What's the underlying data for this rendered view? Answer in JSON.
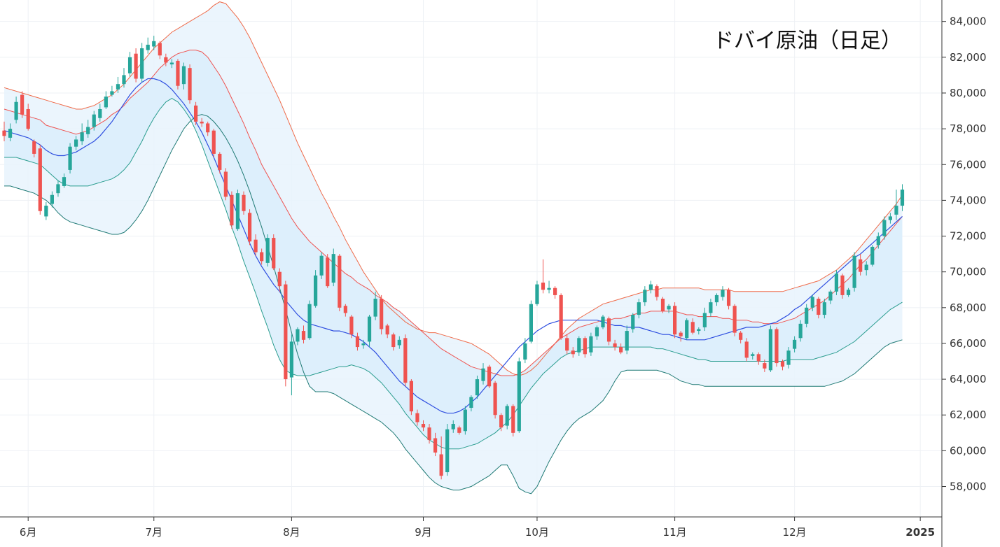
{
  "chart_data": {
    "type": "candlestick",
    "title": "ドバイ原油（日足）",
    "ylim": [
      56300,
      85200
    ],
    "y_ticks": [
      "84,000",
      "82,000",
      "80,000",
      "78,000",
      "76,000",
      "74,000",
      "72,000",
      "70,000",
      "68,000",
      "66,000",
      "64,000",
      "62,000",
      "60,000",
      "58,000"
    ],
    "y_tick_values": [
      84000,
      82000,
      80000,
      78000,
      76000,
      74000,
      72000,
      70000,
      68000,
      66000,
      64000,
      62000,
      60000,
      58000
    ],
    "x_ticks": [
      {
        "label": "6月",
        "day": 4,
        "bold": false
      },
      {
        "label": "7月",
        "day": 25,
        "bold": false
      },
      {
        "label": "8月",
        "day": 48,
        "bold": false
      },
      {
        "label": "9月",
        "day": 70,
        "bold": false
      },
      {
        "label": "10月",
        "day": 89,
        "bold": false
      },
      {
        "label": "11月",
        "day": 112,
        "bold": false
      },
      {
        "label": "12月",
        "day": 132,
        "bold": false
      },
      {
        "label": "2025",
        "day": 153,
        "bold": true
      }
    ],
    "series_colors": {
      "up": "#26a69a",
      "down": "#ef5350",
      "sma": "#2f4fe0",
      "band1": "#ef5350",
      "band2": "#ef6b4a",
      "lower1": "#2a9d8f",
      "lower2": "#1f7a75",
      "fill_outer": "#e8f3fd",
      "fill_inner": "#dbeefc"
    },
    "close": [
      77600,
      78000,
      79500,
      78800,
      78000,
      76600,
      73400,
      73700,
      74300,
      74900,
      75300,
      77000,
      77400,
      77800,
      78100,
      78800,
      79100,
      79800,
      80100,
      80500,
      81000,
      82000,
      80800,
      82500,
      82700,
      82900,
      82100,
      81700,
      81700,
      80400,
      81500,
      79600,
      78400,
      78300,
      77800,
      76600,
      75700,
      74200,
      72600,
      74400,
      73400,
      71700,
      71100,
      70600,
      71900,
      70200,
      69200,
      64000,
      66100,
      66800,
      66200,
      68200,
      69800,
      70900,
      69200,
      71000,
      68000,
      67700,
      66500,
      65800,
      66000,
      67500,
      68500,
      66800,
      66500,
      65800,
      66200,
      63800,
      62200,
      61600,
      61300,
      60600,
      59900,
      58600,
      61200,
      61500,
      61000,
      62300,
      63000,
      64000,
      64600,
      63600,
      62000,
      61300,
      62500,
      61000,
      65000,
      66000,
      68200,
      69300,
      69000,
      69100,
      68700,
      66300,
      65600,
      65400,
      66300,
      65400,
      66400,
      66900,
      67500,
      66100,
      65800,
      65500,
      66700,
      67600,
      68300,
      69000,
      69300,
      68600,
      67800,
      68100,
      66500,
      66400,
      67300,
      66600,
      66800,
      67700,
      68300,
      68700,
      69000,
      68100,
      66600,
      66200,
      65200,
      65400,
      65000,
      64600,
      66800,
      64900,
      64700,
      65600,
      66200,
      67100,
      68000,
      68600,
      67600,
      68300,
      68900,
      69900,
      68700,
      69000,
      70900,
      70000,
      70400,
      71400,
      72000,
      72900,
      73100,
      73700,
      74600
    ],
    "open": [
      77900,
      77500,
      78500,
      79900,
      79100,
      77300,
      76900,
      73100,
      73800,
      74400,
      74800,
      75700,
      77000,
      77300,
      77700,
      78100,
      78600,
      79200,
      79900,
      80200,
      80500,
      81100,
      82200,
      80800,
      82400,
      82600,
      82800,
      82000,
      81600,
      81800,
      80500,
      81400,
      79300,
      78400,
      78300,
      77900,
      76600,
      75600,
      74300,
      72400,
      74300,
      73300,
      71800,
      71100,
      70500,
      71900,
      70000,
      69300,
      64100,
      66100,
      66700,
      66300,
      68100,
      69800,
      70800,
      69400,
      70900,
      68100,
      67500,
      66400,
      65900,
      66100,
      67500,
      68500,
      67000,
      66500,
      65900,
      66300,
      63900,
      62100,
      61500,
      61300,
      60700,
      59800,
      58800,
      61200,
      61300,
      61100,
      62400,
      63100,
      63900,
      64700,
      63800,
      62000,
      61400,
      62500,
      61100,
      65100,
      66100,
      68200,
      69400,
      69000,
      69100,
      68700,
      66300,
      65600,
      65500,
      66300,
      65500,
      66400,
      66900,
      67400,
      66000,
      65800,
      65600,
      66800,
      67600,
      68300,
      69000,
      69200,
      68500,
      67900,
      68100,
      66600,
      66300,
      67200,
      66700,
      66900,
      67700,
      68300,
      68600,
      69000,
      68100,
      66600,
      66100,
      65300,
      65400,
      64900,
      64500,
      66800,
      65000,
      64800,
      65700,
      66300,
      67100,
      68000,
      68500,
      67600,
      68400,
      68900,
      69800,
      68700,
      69100,
      70700,
      70100,
      70400,
      71500,
      72000,
      72900,
      73200,
      73700
    ],
    "high": [
      78400,
      78300,
      79800,
      80100,
      79400,
      77400,
      77100,
      73900,
      74500,
      75100,
      75500,
      77200,
      77600,
      78300,
      78500,
      79000,
      79400,
      80100,
      80400,
      80900,
      81400,
      82300,
      82500,
      82800,
      83100,
      83200,
      82900,
      82200,
      81900,
      81900,
      81700,
      81600,
      79500,
      78600,
      78400,
      78000,
      76700,
      75800,
      74500,
      74600,
      74500,
      73500,
      72100,
      71300,
      72100,
      72100,
      70200,
      69500,
      66500,
      66900,
      67000,
      68400,
      70100,
      71100,
      71000,
      71300,
      71000,
      68200,
      67600,
      66600,
      66200,
      67600,
      68900,
      68700,
      67100,
      66600,
      66400,
      66500,
      64000,
      62300,
      61700,
      61500,
      61000,
      60800,
      61500,
      61700,
      61400,
      62500,
      63100,
      64200,
      64900,
      64800,
      63900,
      62100,
      62600,
      62600,
      65200,
      66300,
      68400,
      69500,
      70700,
      69500,
      69200,
      68800,
      66500,
      65800,
      66400,
      66400,
      66600,
      67000,
      67600,
      67500,
      66200,
      66000,
      67000,
      67700,
      68500,
      69200,
      69500,
      69300,
      68600,
      68200,
      68300,
      66700,
      67400,
      67400,
      66900,
      68000,
      68500,
      68800,
      69200,
      69100,
      68200,
      66700,
      66300,
      65500,
      65500,
      65100,
      67000,
      66900,
      65100,
      65800,
      66400,
      67300,
      68200,
      68700,
      68600,
      68500,
      69000,
      70100,
      69900,
      69100,
      71100,
      71000,
      70600,
      71500,
      72200,
      73100,
      73300,
      74600,
      74900
    ],
    "low": [
      77300,
      77300,
      78300,
      78600,
      77900,
      76400,
      73200,
      72900,
      73600,
      74200,
      74700,
      75500,
      76800,
      77100,
      77500,
      77900,
      78400,
      79100,
      79800,
      80000,
      80300,
      80900,
      80600,
      80600,
      82200,
      82400,
      81900,
      81500,
      81400,
      80200,
      80200,
      79400,
      78200,
      78100,
      77600,
      76400,
      75500,
      74000,
      72400,
      72300,
      73200,
      71500,
      70900,
      70400,
      70300,
      70100,
      68900,
      63600,
      63100,
      65900,
      66000,
      66200,
      68000,
      69600,
      69100,
      69200,
      67800,
      67500,
      66300,
      65600,
      65700,
      65800,
      67300,
      66500,
      66300,
      65600,
      65700,
      63600,
      62000,
      61400,
      61100,
      60400,
      59700,
      58400,
      58600,
      61000,
      60900,
      60900,
      62200,
      62900,
      63700,
      63500,
      61800,
      61100,
      61200,
      60800,
      61000,
      64900,
      66000,
      68100,
      68800,
      68800,
      68500,
      66200,
      65400,
      65200,
      65300,
      65200,
      65300,
      66200,
      66800,
      65900,
      65600,
      65400,
      65400,
      66600,
      67400,
      68100,
      68800,
      68400,
      67700,
      67700,
      66300,
      66100,
      66200,
      66500,
      66500,
      66700,
      67500,
      68100,
      68400,
      67900,
      66400,
      66000,
      65000,
      65100,
      64800,
      64400,
      64400,
      64700,
      64500,
      64600,
      65500,
      66100,
      66900,
      67800,
      67400,
      67400,
      68200,
      68700,
      68500,
      68600,
      68900,
      69800,
      69800,
      70300,
      71300,
      71800,
      72700,
      72900,
      73400
    ],
    "sma": [
      77900,
      77800,
      77700,
      77600,
      77500,
      77300,
      77100,
      76800,
      76600,
      76500,
      76500,
      76600,
      76700,
      76900,
      77100,
      77300,
      77600,
      78000,
      78400,
      78900,
      79400,
      79900,
      80300,
      80600,
      80800,
      80800,
      80700,
      80500,
      80200,
      79800,
      79400,
      78900,
      78400,
      77800,
      77100,
      76400,
      75600,
      74800,
      74000,
      73200,
      72400,
      71600,
      70900,
      70300,
      69800,
      69300,
      68900,
      68400,
      68000,
      67600,
      67300,
      67100,
      67000,
      66900,
      66800,
      66700,
      66700,
      66600,
      66500,
      66300,
      66100,
      65800,
      65500,
      65100,
      64700,
      64300,
      63900,
      63600,
      63300,
      63000,
      62800,
      62600,
      62400,
      62200,
      62100,
      62100,
      62200,
      62400,
      62700,
      63000,
      63400,
      63800,
      64200,
      64600,
      65000,
      65400,
      65800,
      66100,
      66400,
      66700,
      66900,
      67100,
      67200,
      67300,
      67300,
      67300,
      67300,
      67300,
      67300,
      67300,
      67200,
      67100,
      67000,
      67000,
      66900,
      66900,
      66900,
      66800,
      66700,
      66600,
      66500,
      66500,
      66400,
      66300,
      66200,
      66200,
      66200,
      66200,
      66300,
      66400,
      66500,
      66600,
      66700,
      66800,
      66900,
      66900,
      66900,
      67000,
      67100,
      67200,
      67400,
      67600,
      67900,
      68100,
      68400,
      68700,
      69000,
      69300,
      69600,
      69900,
      70200,
      70500,
      70800,
      71000,
      71300,
      71600,
      71900,
      72200,
      72500,
      72800,
      73100
    ],
    "upper_band_1": [
      79100,
      79000,
      78900,
      78800,
      78700,
      78600,
      78500,
      78200,
      78100,
      78000,
      77900,
      77800,
      77700,
      77800,
      77900,
      78100,
      78300,
      78500,
      78800,
      79000,
      79300,
      79700,
      80000,
      80300,
      80600,
      81000,
      81400,
      81700,
      82000,
      82200,
      82300,
      82400,
      82400,
      82300,
      82000,
      81500,
      81000,
      80400,
      79700,
      79000,
      78300,
      77500,
      76800,
      76000,
      75400,
      74800,
      74200,
      73600,
      73000,
      72500,
      72100,
      71700,
      71400,
      71100,
      70800,
      70500,
      70200,
      69900,
      69700,
      69400,
      69200,
      69000,
      68700,
      68500,
      68300,
      68000,
      67800,
      67500,
      67200,
      66900,
      66600,
      66300,
      66000,
      65700,
      65500,
      65300,
      65100,
      64900,
      64700,
      64600,
      64500,
      64400,
      64300,
      64200,
      64200,
      64200,
      64300,
      64500,
      64800,
      65100,
      65400,
      65700,
      66000,
      66300,
      66500,
      66700,
      66900,
      67000,
      67100,
      67200,
      67300,
      67300,
      67400,
      67400,
      67500,
      67600,
      67700,
      67700,
      67800,
      67800,
      67800,
      67800,
      67800,
      67700,
      67600,
      67600,
      67500,
      67500,
      67500,
      67500,
      67400,
      67400,
      67300,
      67300,
      67300,
      67200,
      67200,
      67100,
      67100,
      67100,
      67200,
      67300,
      67400,
      67600,
      67800,
      68000,
      68200,
      68400,
      68700,
      69000,
      69300,
      69600,
      70000,
      70400,
      70700,
      71100,
      71500,
      71900,
      72300,
      72700,
      73100
    ],
    "upper_band_2": [
      80300,
      80200,
      80100,
      80000,
      79900,
      79800,
      79700,
      79600,
      79500,
      79400,
      79300,
      79200,
      79100,
      79100,
      79200,
      79300,
      79500,
      79700,
      79900,
      80200,
      80500,
      80900,
      81300,
      81700,
      82100,
      82500,
      82800,
      83100,
      83400,
      83600,
      83800,
      84000,
      84200,
      84400,
      84600,
      84900,
      85100,
      85000,
      84600,
      84200,
      83700,
      83100,
      82400,
      81700,
      81000,
      80300,
      79600,
      78800,
      78000,
      77200,
      76500,
      75800,
      75100,
      74400,
      73800,
      73100,
      72500,
      71800,
      71200,
      70600,
      70000,
      69500,
      69000,
      68500,
      68100,
      67800,
      67500,
      67200,
      67000,
      66800,
      66700,
      66600,
      66600,
      66500,
      66400,
      66300,
      66200,
      66100,
      66000,
      65800,
      65600,
      65400,
      65100,
      64800,
      64500,
      64300,
      64200,
      64300,
      64500,
      64800,
      65200,
      65600,
      66000,
      66400,
      66800,
      67100,
      67400,
      67600,
      67800,
      68000,
      68200,
      68300,
      68400,
      68500,
      68600,
      68700,
      68800,
      68900,
      69000,
      69000,
      69100,
      69100,
      69100,
      69100,
      69100,
      69100,
      69100,
      69000,
      69000,
      69000,
      69000,
      69000,
      68900,
      68900,
      68900,
      68900,
      68900,
      68900,
      68900,
      68900,
      68900,
      69000,
      69100,
      69200,
      69300,
      69400,
      69500,
      69700,
      69900,
      70100,
      70400,
      70700,
      71000,
      71400,
      71800,
      72200,
      72600,
      73000,
      73400,
      73800,
      74300
    ],
    "lower_band_1": [
      76400,
      76400,
      76400,
      76300,
      76200,
      76100,
      76000,
      75700,
      75400,
      75100,
      74900,
      74800,
      74800,
      74800,
      74800,
      74900,
      75000,
      75100,
      75200,
      75400,
      75700,
      76100,
      76700,
      77300,
      78000,
      78600,
      79100,
      79500,
      79700,
      79500,
      79100,
      78600,
      77900,
      77100,
      76200,
      75300,
      74400,
      73500,
      72500,
      71600,
      70600,
      69700,
      68800,
      67800,
      66900,
      65900,
      65100,
      64500,
      64300,
      64200,
      64200,
      64200,
      64300,
      64400,
      64500,
      64600,
      64700,
      64700,
      64800,
      64700,
      64600,
      64400,
      64100,
      63800,
      63400,
      63000,
      62600,
      62100,
      61700,
      61300,
      60900,
      60600,
      60400,
      60200,
      60100,
      60100,
      60100,
      60200,
      60300,
      60400,
      60600,
      60800,
      61000,
      61300,
      61600,
      62000,
      62500,
      63000,
      63500,
      63900,
      64300,
      64600,
      64900,
      65200,
      65400,
      65500,
      65600,
      65700,
      65800,
      65800,
      65800,
      65800,
      65800,
      65800,
      65800,
      65800,
      65800,
      65800,
      65800,
      65700,
      65700,
      65600,
      65500,
      65400,
      65300,
      65200,
      65100,
      65100,
      65000,
      65000,
      65000,
      65000,
      65000,
      65000,
      65000,
      65000,
      65000,
      65000,
      65000,
      65000,
      65000,
      65100,
      65100,
      65100,
      65100,
      65100,
      65200,
      65300,
      65400,
      65500,
      65700,
      65900,
      66100,
      66400,
      66700,
      67000,
      67300,
      67600,
      67900,
      68100,
      68300
    ],
    "lower_band_2": [
      74800,
      74800,
      74700,
      74600,
      74500,
      74400,
      74200,
      74000,
      73700,
      73300,
      73000,
      72800,
      72700,
      72600,
      72500,
      72400,
      72300,
      72200,
      72100,
      72100,
      72200,
      72500,
      72900,
      73400,
      74000,
      74700,
      75400,
      76100,
      76800,
      77400,
      78000,
      78400,
      78700,
      78800,
      78700,
      78400,
      78000,
      77500,
      76900,
      76200,
      75400,
      74500,
      73500,
      72500,
      71400,
      70300,
      69100,
      67900,
      66600,
      65400,
      64400,
      63600,
      63300,
      63300,
      63300,
      63200,
      63000,
      62800,
      62600,
      62400,
      62200,
      62000,
      61800,
      61600,
      61300,
      61000,
      60600,
      60100,
      59700,
      59300,
      58900,
      58500,
      58200,
      58000,
      57900,
      57800,
      57800,
      57900,
      58000,
      58200,
      58400,
      58600,
      58900,
      59200,
      59200,
      58600,
      57900,
      57700,
      57600,
      58000,
      58700,
      59400,
      60000,
      60600,
      61100,
      61500,
      61800,
      62000,
      62200,
      62500,
      62800,
      63300,
      63900,
      64400,
      64500,
      64500,
      64500,
      64500,
      64500,
      64500,
      64400,
      64300,
      64100,
      63900,
      63800,
      63700,
      63700,
      63600,
      63600,
      63600,
      63600,
      63600,
      63600,
      63600,
      63600,
      63600,
      63600,
      63600,
      63600,
      63600,
      63600,
      63600,
      63600,
      63600,
      63600,
      63600,
      63600,
      63600,
      63700,
      63800,
      63900,
      64100,
      64300,
      64600,
      64900,
      65200,
      65500,
      65800,
      66000,
      66100,
      66200
    ]
  }
}
